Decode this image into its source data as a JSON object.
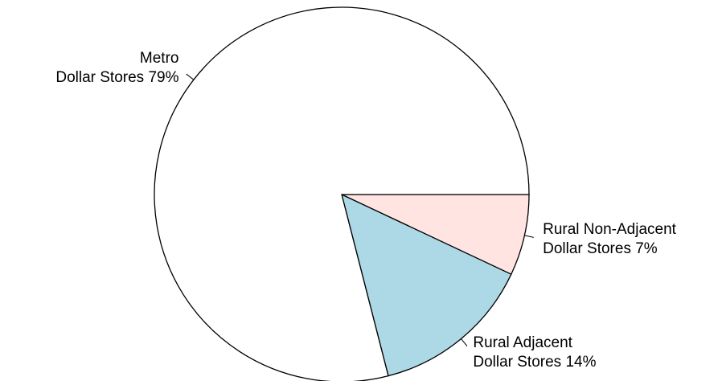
{
  "chart_data": {
    "type": "pie",
    "categories": [
      "Rural Non-Adjacent\nDollar Stores 7%",
      "Rural Adjacent\nDollar Stores 14%",
      "Metro\nDollar Stores 79%"
    ],
    "values": [
      7,
      14,
      79
    ],
    "colors": [
      "#ffe4e1",
      "#add8e6",
      "#ffffff"
    ],
    "clockwise": true
  }
}
